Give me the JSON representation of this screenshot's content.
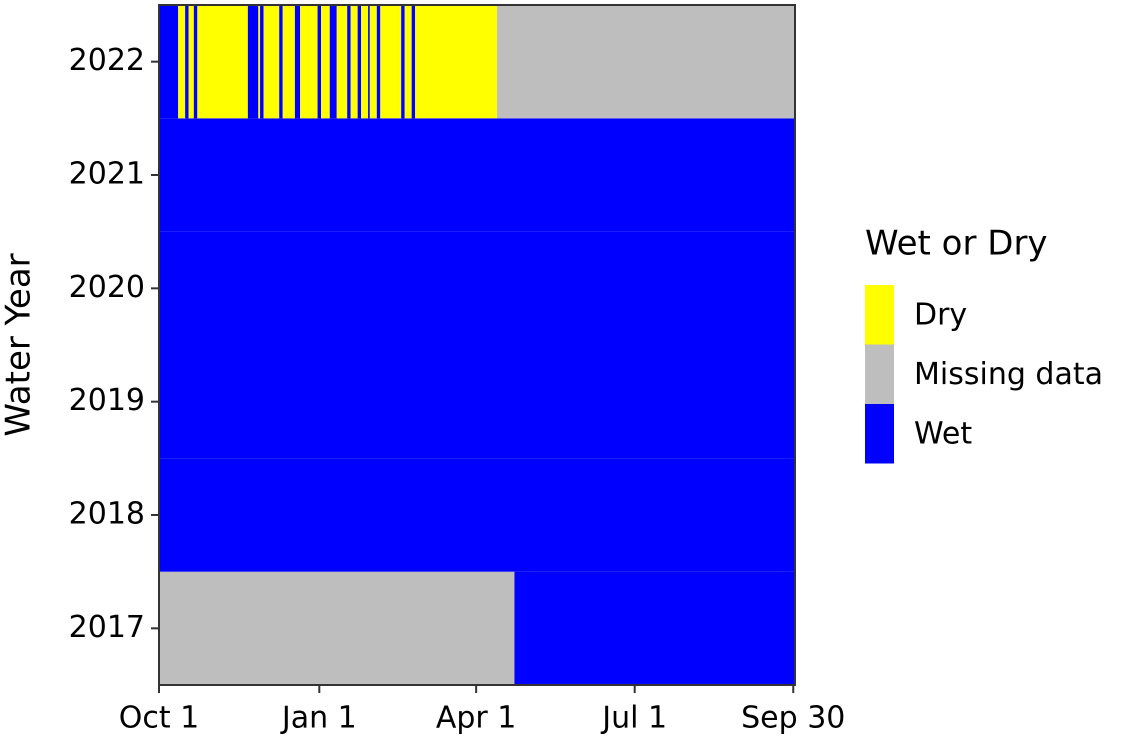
{
  "chart_data": {
    "type": "heatmap",
    "y_label": "Water Year",
    "xlim": [
      0,
      365
    ],
    "xticks": [
      {
        "value": 0,
        "label": "Oct 1"
      },
      {
        "value": 92,
        "label": "Jan 1"
      },
      {
        "value": 182,
        "label": "Apr 1"
      },
      {
        "value": 273,
        "label": "Jul 1"
      },
      {
        "value": 364,
        "label": "Sep 30"
      }
    ],
    "categories": [
      "2017",
      "2018",
      "2019",
      "2020",
      "2021",
      "2022"
    ],
    "legend": {
      "title": "Wet or Dry",
      "items": [
        {
          "name": "Dry",
          "color": "#ffff00"
        },
        {
          "name": "Missing data",
          "color": "#bebebe"
        },
        {
          "name": "Wet",
          "color": "#0000ff"
        }
      ]
    },
    "rows": [
      {
        "segments": [
          {
            "status": "Missing data",
            "start": 0,
            "end": 204
          },
          {
            "status": "Wet",
            "start": 204,
            "end": 365
          }
        ]
      },
      {
        "segments": [
          {
            "status": "Wet",
            "start": 0,
            "end": 365
          }
        ]
      },
      {
        "segments": [
          {
            "status": "Wet",
            "start": 0,
            "end": 365
          }
        ]
      },
      {
        "segments": [
          {
            "status": "Wet",
            "start": 0,
            "end": 365
          }
        ]
      },
      {
        "segments": [
          {
            "status": "Wet",
            "start": 0,
            "end": 365
          }
        ]
      },
      {
        "segments": [
          {
            "status": "Wet",
            "start": 0,
            "end": 11
          },
          {
            "status": "Dry",
            "start": 11,
            "end": 15
          },
          {
            "status": "Wet",
            "start": 15,
            "end": 17
          },
          {
            "status": "Dry",
            "start": 17,
            "end": 20
          },
          {
            "status": "Wet",
            "start": 20,
            "end": 22
          },
          {
            "status": "Dry",
            "start": 22,
            "end": 51
          },
          {
            "status": "Wet",
            "start": 51,
            "end": 57
          },
          {
            "status": "Dry",
            "start": 57,
            "end": 58
          },
          {
            "status": "Wet",
            "start": 58,
            "end": 60
          },
          {
            "status": "Dry",
            "start": 60,
            "end": 69
          },
          {
            "status": "Wet",
            "start": 69,
            "end": 71
          },
          {
            "status": "Dry",
            "start": 71,
            "end": 78
          },
          {
            "status": "Wet",
            "start": 78,
            "end": 81
          },
          {
            "status": "Dry",
            "start": 81,
            "end": 91
          },
          {
            "status": "Wet",
            "start": 91,
            "end": 93
          },
          {
            "status": "Dry",
            "start": 93,
            "end": 98
          },
          {
            "status": "Wet",
            "start": 98,
            "end": 102
          },
          {
            "status": "Dry",
            "start": 102,
            "end": 108
          },
          {
            "status": "Wet",
            "start": 108,
            "end": 110
          },
          {
            "status": "Dry",
            "start": 110,
            "end": 114
          },
          {
            "status": "Wet",
            "start": 114,
            "end": 116
          },
          {
            "status": "Dry",
            "start": 116,
            "end": 120
          },
          {
            "status": "Wet",
            "start": 120,
            "end": 121
          },
          {
            "status": "Dry",
            "start": 121,
            "end": 125
          },
          {
            "status": "Wet",
            "start": 125,
            "end": 127
          },
          {
            "status": "Dry",
            "start": 127,
            "end": 139
          },
          {
            "status": "Wet",
            "start": 139,
            "end": 141
          },
          {
            "status": "Dry",
            "start": 141,
            "end": 145
          },
          {
            "status": "Wet",
            "start": 145,
            "end": 147
          },
          {
            "status": "Dry",
            "start": 147,
            "end": 194
          },
          {
            "status": "Missing data",
            "start": 194,
            "end": 365
          }
        ]
      }
    ]
  }
}
